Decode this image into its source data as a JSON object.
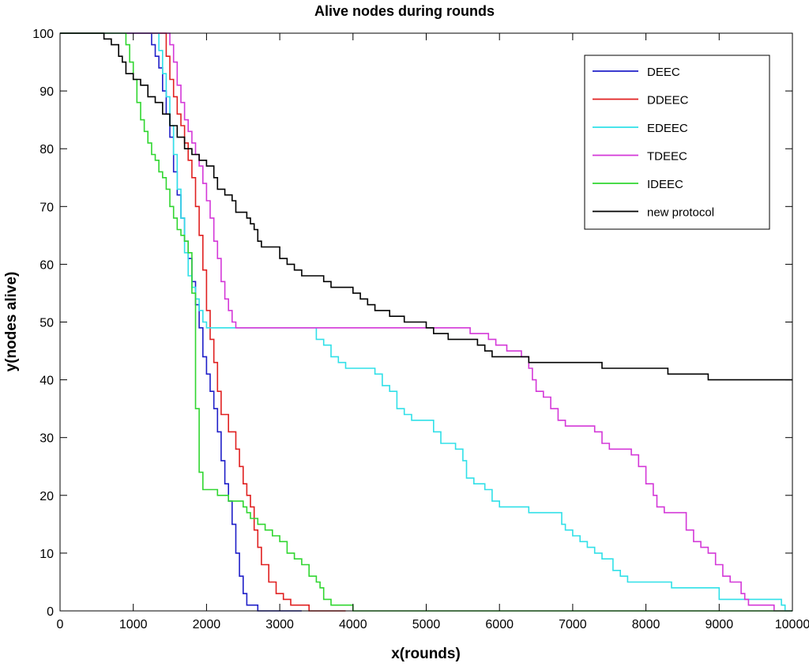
{
  "chart_data": {
    "type": "line",
    "title": "Alive nodes during rounds",
    "xlabel": "x(rounds)",
    "ylabel": "y(nodes alive)",
    "xlim": [
      0,
      10000
    ],
    "ylim": [
      0,
      100
    ],
    "xticks": [
      0,
      1000,
      2000,
      3000,
      4000,
      5000,
      6000,
      7000,
      8000,
      9000,
      10000
    ],
    "yticks": [
      0,
      10,
      20,
      30,
      40,
      50,
      60,
      70,
      80,
      90,
      100
    ],
    "grid": false,
    "legend_position": "top-right",
    "series": [
      {
        "name": "DEEC",
        "color": "#1f1fc8",
        "points": [
          [
            0,
            100
          ],
          [
            1200,
            100
          ],
          [
            1250,
            98
          ],
          [
            1300,
            96
          ],
          [
            1350,
            94
          ],
          [
            1400,
            90
          ],
          [
            1450,
            86
          ],
          [
            1500,
            82
          ],
          [
            1550,
            76
          ],
          [
            1600,
            72
          ],
          [
            1650,
            68
          ],
          [
            1700,
            64
          ],
          [
            1750,
            61
          ],
          [
            1800,
            57
          ],
          [
            1850,
            53
          ],
          [
            1900,
            49
          ],
          [
            1950,
            44
          ],
          [
            2000,
            41
          ],
          [
            2050,
            38
          ],
          [
            2100,
            35
          ],
          [
            2150,
            31
          ],
          [
            2200,
            26
          ],
          [
            2250,
            22
          ],
          [
            2300,
            19
          ],
          [
            2350,
            15
          ],
          [
            2400,
            10
          ],
          [
            2450,
            6
          ],
          [
            2500,
            3
          ],
          [
            2550,
            1
          ],
          [
            2600,
            1
          ],
          [
            2700,
            0
          ],
          [
            3300,
            0
          ]
        ]
      },
      {
        "name": "DDEEC",
        "color": "#e02020",
        "points": [
          [
            0,
            100
          ],
          [
            1400,
            100
          ],
          [
            1450,
            96
          ],
          [
            1500,
            92
          ],
          [
            1550,
            89
          ],
          [
            1600,
            86
          ],
          [
            1650,
            84
          ],
          [
            1700,
            81
          ],
          [
            1750,
            78
          ],
          [
            1800,
            75
          ],
          [
            1850,
            70
          ],
          [
            1900,
            65
          ],
          [
            1950,
            59
          ],
          [
            2000,
            52
          ],
          [
            2050,
            47
          ],
          [
            2100,
            43
          ],
          [
            2150,
            38
          ],
          [
            2200,
            34
          ],
          [
            2300,
            31
          ],
          [
            2400,
            28
          ],
          [
            2450,
            25
          ],
          [
            2500,
            22
          ],
          [
            2550,
            20
          ],
          [
            2600,
            18
          ],
          [
            2650,
            14
          ],
          [
            2700,
            11
          ],
          [
            2750,
            8
          ],
          [
            2850,
            5
          ],
          [
            2950,
            3
          ],
          [
            3050,
            2
          ],
          [
            3150,
            1
          ],
          [
            3350,
            1
          ],
          [
            3400,
            0
          ],
          [
            3900,
            0
          ]
        ]
      },
      {
        "name": "EDEEC",
        "color": "#30e0e8",
        "points": [
          [
            0,
            100
          ],
          [
            1300,
            100
          ],
          [
            1350,
            97
          ],
          [
            1400,
            93
          ],
          [
            1450,
            89
          ],
          [
            1500,
            84
          ],
          [
            1550,
            79
          ],
          [
            1600,
            73
          ],
          [
            1650,
            68
          ],
          [
            1700,
            62
          ],
          [
            1750,
            58
          ],
          [
            1800,
            56
          ],
          [
            1850,
            54
          ],
          [
            1900,
            52
          ],
          [
            1950,
            50
          ],
          [
            2000,
            49
          ],
          [
            3450,
            49
          ],
          [
            3500,
            47
          ],
          [
            3600,
            46
          ],
          [
            3700,
            44
          ],
          [
            3800,
            43
          ],
          [
            3900,
            42
          ],
          [
            4200,
            42
          ],
          [
            4300,
            41
          ],
          [
            4400,
            39
          ],
          [
            4500,
            38
          ],
          [
            4600,
            35
          ],
          [
            4700,
            34
          ],
          [
            4800,
            33
          ],
          [
            5000,
            33
          ],
          [
            5100,
            31
          ],
          [
            5200,
            29
          ],
          [
            5400,
            28
          ],
          [
            5500,
            26
          ],
          [
            5550,
            23
          ],
          [
            5650,
            22
          ],
          [
            5800,
            21
          ],
          [
            5900,
            19
          ],
          [
            6000,
            18
          ],
          [
            6300,
            18
          ],
          [
            6400,
            17
          ],
          [
            6800,
            17
          ],
          [
            6850,
            15
          ],
          [
            6900,
            14
          ],
          [
            7000,
            13
          ],
          [
            7100,
            12
          ],
          [
            7200,
            11
          ],
          [
            7300,
            10
          ],
          [
            7400,
            9
          ],
          [
            7550,
            7
          ],
          [
            7650,
            6
          ],
          [
            7750,
            5
          ],
          [
            8300,
            5
          ],
          [
            8350,
            4
          ],
          [
            8900,
            4
          ],
          [
            9000,
            2
          ],
          [
            9800,
            2
          ],
          [
            9850,
            1
          ],
          [
            9900,
            0
          ],
          [
            10000,
            0
          ]
        ]
      },
      {
        "name": "TDEEC",
        "color": "#d438d8",
        "points": [
          [
            0,
            100
          ],
          [
            1450,
            100
          ],
          [
            1500,
            98
          ],
          [
            1550,
            95
          ],
          [
            1600,
            91
          ],
          [
            1650,
            88
          ],
          [
            1700,
            85
          ],
          [
            1750,
            83
          ],
          [
            1800,
            81
          ],
          [
            1850,
            79
          ],
          [
            1900,
            77
          ],
          [
            1950,
            74
          ],
          [
            2000,
            71
          ],
          [
            2050,
            68
          ],
          [
            2100,
            64
          ],
          [
            2150,
            61
          ],
          [
            2200,
            57
          ],
          [
            2250,
            54
          ],
          [
            2300,
            52
          ],
          [
            2350,
            50
          ],
          [
            2400,
            49
          ],
          [
            5500,
            49
          ],
          [
            5600,
            48
          ],
          [
            5850,
            47
          ],
          [
            5950,
            46
          ],
          [
            6100,
            45
          ],
          [
            6300,
            44
          ],
          [
            6400,
            42
          ],
          [
            6450,
            40
          ],
          [
            6500,
            38
          ],
          [
            6600,
            37
          ],
          [
            6700,
            35
          ],
          [
            6800,
            33
          ],
          [
            6900,
            32
          ],
          [
            7200,
            32
          ],
          [
            7300,
            31
          ],
          [
            7400,
            29
          ],
          [
            7500,
            28
          ],
          [
            7700,
            28
          ],
          [
            7800,
            27
          ],
          [
            7900,
            25
          ],
          [
            8000,
            22
          ],
          [
            8100,
            20
          ],
          [
            8150,
            18
          ],
          [
            8250,
            17
          ],
          [
            8500,
            17
          ],
          [
            8550,
            14
          ],
          [
            8650,
            12
          ],
          [
            8750,
            11
          ],
          [
            8850,
            10
          ],
          [
            8950,
            8
          ],
          [
            9050,
            6
          ],
          [
            9150,
            5
          ],
          [
            9300,
            3
          ],
          [
            9350,
            2
          ],
          [
            9400,
            1
          ],
          [
            9700,
            1
          ],
          [
            9750,
            0
          ],
          [
            10000,
            0
          ]
        ]
      },
      {
        "name": "IDEEC",
        "color": "#30d630",
        "points": [
          [
            0,
            100
          ],
          [
            850,
            100
          ],
          [
            900,
            98
          ],
          [
            950,
            95
          ],
          [
            1000,
            92
          ],
          [
            1050,
            88
          ],
          [
            1100,
            85
          ],
          [
            1150,
            83
          ],
          [
            1200,
            81
          ],
          [
            1250,
            79
          ],
          [
            1300,
            78
          ],
          [
            1350,
            76
          ],
          [
            1400,
            75
          ],
          [
            1450,
            73
          ],
          [
            1500,
            70
          ],
          [
            1550,
            68
          ],
          [
            1600,
            66
          ],
          [
            1650,
            65
          ],
          [
            1700,
            64
          ],
          [
            1750,
            62
          ],
          [
            1800,
            55
          ],
          [
            1850,
            35
          ],
          [
            1900,
            24
          ],
          [
            1950,
            21
          ],
          [
            2100,
            21
          ],
          [
            2150,
            20
          ],
          [
            2300,
            19
          ],
          [
            2500,
            18
          ],
          [
            2550,
            17
          ],
          [
            2600,
            16
          ],
          [
            2700,
            15
          ],
          [
            2800,
            14
          ],
          [
            2900,
            13
          ],
          [
            3000,
            12
          ],
          [
            3100,
            10
          ],
          [
            3200,
            9
          ],
          [
            3300,
            8
          ],
          [
            3400,
            6
          ],
          [
            3500,
            5
          ],
          [
            3550,
            4
          ],
          [
            3600,
            2
          ],
          [
            3700,
            1
          ],
          [
            3950,
            1
          ],
          [
            4000,
            0
          ],
          [
            10000,
            0
          ]
        ]
      },
      {
        "name": "new protocol",
        "color": "#000000",
        "points": [
          [
            0,
            100
          ],
          [
            550,
            100
          ],
          [
            600,
            99
          ],
          [
            700,
            98
          ],
          [
            800,
            96
          ],
          [
            850,
            95
          ],
          [
            900,
            93
          ],
          [
            1000,
            92
          ],
          [
            1100,
            91
          ],
          [
            1200,
            89
          ],
          [
            1300,
            88
          ],
          [
            1400,
            86
          ],
          [
            1500,
            84
          ],
          [
            1600,
            82
          ],
          [
            1700,
            80
          ],
          [
            1800,
            79
          ],
          [
            1900,
            78
          ],
          [
            2000,
            77
          ],
          [
            2100,
            75
          ],
          [
            2150,
            73
          ],
          [
            2250,
            72
          ],
          [
            2350,
            71
          ],
          [
            2400,
            69
          ],
          [
            2550,
            68
          ],
          [
            2600,
            67
          ],
          [
            2650,
            66
          ],
          [
            2700,
            64
          ],
          [
            2750,
            63
          ],
          [
            2950,
            63
          ],
          [
            3000,
            61
          ],
          [
            3100,
            60
          ],
          [
            3200,
            59
          ],
          [
            3300,
            58
          ],
          [
            3500,
            58
          ],
          [
            3600,
            57
          ],
          [
            3700,
            56
          ],
          [
            3900,
            56
          ],
          [
            4000,
            55
          ],
          [
            4100,
            54
          ],
          [
            4200,
            53
          ],
          [
            4300,
            52
          ],
          [
            4500,
            51
          ],
          [
            4700,
            50
          ],
          [
            5000,
            49
          ],
          [
            5100,
            48
          ],
          [
            5300,
            47
          ],
          [
            5600,
            47
          ],
          [
            5700,
            46
          ],
          [
            5800,
            45
          ],
          [
            5900,
            44
          ],
          [
            6300,
            44
          ],
          [
            6400,
            43
          ],
          [
            7300,
            43
          ],
          [
            7400,
            42
          ],
          [
            8200,
            42
          ],
          [
            8300,
            41
          ],
          [
            8800,
            41
          ],
          [
            8850,
            40
          ],
          [
            10000,
            40
          ]
        ]
      }
    ]
  }
}
